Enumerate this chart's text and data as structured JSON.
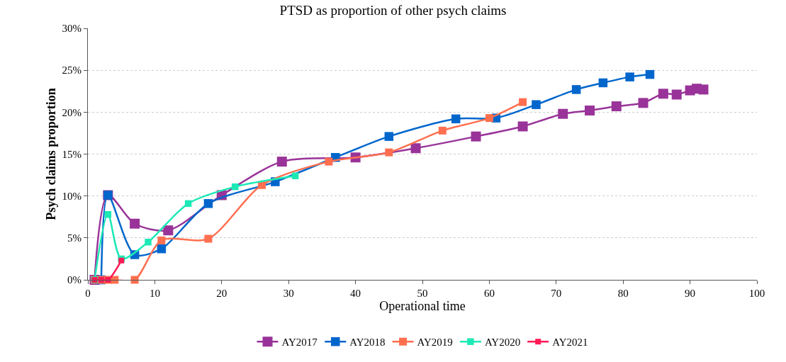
{
  "chart_data": {
    "type": "line",
    "title": "PTSD as proportion of other psych claims",
    "xlabel": "Operational time",
    "ylabel": "Psych claims proportion",
    "xlim": [
      0,
      100
    ],
    "xticks": [
      0,
      10,
      20,
      30,
      40,
      50,
      60,
      70,
      80,
      90,
      100
    ],
    "ylim": [
      0,
      30
    ],
    "yticks": [
      {
        "value": 0,
        "label": "0%"
      },
      {
        "value": 5,
        "label": "5%"
      },
      {
        "value": 10,
        "label": "10%"
      },
      {
        "value": 15,
        "label": "15%"
      },
      {
        "value": 20,
        "label": "20%"
      },
      {
        "value": 25,
        "label": "25%"
      },
      {
        "value": 30,
        "label": "30%"
      }
    ],
    "grid": "y",
    "legend": "bottom",
    "marker": "square",
    "line_style": "solid",
    "series": [
      {
        "name": "AY2017",
        "color": "#993399",
        "x": [
          1,
          3,
          7,
          12,
          20,
          29,
          40,
          49,
          58,
          65,
          71,
          75,
          79,
          83,
          86,
          88,
          90,
          91,
          92
        ],
        "values": [
          0,
          10.1,
          6.7,
          5.9,
          10.1,
          14.1,
          14.6,
          15.7,
          17.1,
          18.3,
          19.8,
          20.2,
          20.7,
          21.1,
          22.2,
          22.1,
          22.6,
          22.8,
          22.7
        ]
      },
      {
        "name": "AY2018",
        "color": "#0066cc",
        "x": [
          2,
          3,
          7,
          11,
          18,
          28,
          37,
          45,
          55,
          61,
          67,
          73,
          77,
          81,
          84
        ],
        "values": [
          0,
          10.1,
          3.0,
          3.7,
          9.1,
          11.7,
          14.6,
          17.1,
          19.2,
          19.3,
          20.9,
          22.7,
          23.5,
          24.2,
          24.5
        ]
      },
      {
        "name": "AY2019",
        "color": "#ff6f4f",
        "x": [
          1,
          2,
          3,
          4,
          7,
          11,
          18,
          26,
          36,
          45,
          53,
          60,
          65
        ],
        "values": [
          0,
          0,
          0,
          0,
          0,
          4.7,
          4.9,
          11.3,
          14.1,
          15.2,
          17.8,
          19.3,
          21.2
        ]
      },
      {
        "name": "AY2020",
        "color": "#1de9b6",
        "x": [
          1,
          3,
          5,
          9,
          15,
          22,
          31
        ],
        "values": [
          0,
          7.8,
          2.5,
          4.5,
          9.1,
          11.1,
          12.4
        ]
      },
      {
        "name": "AY2021",
        "color": "#ff1a55",
        "x": [
          1,
          2,
          3,
          5
        ],
        "values": [
          0,
          0,
          0,
          2.3
        ]
      }
    ]
  }
}
